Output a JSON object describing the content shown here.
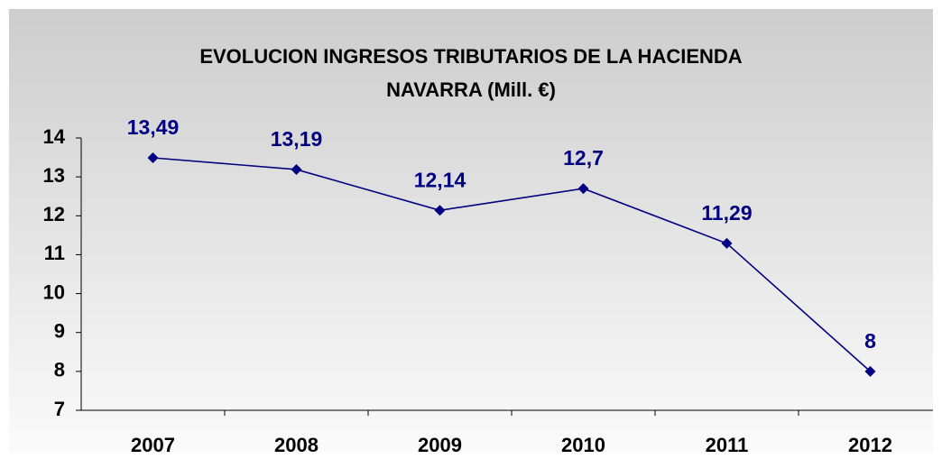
{
  "chart_data": {
    "type": "line",
    "title": "EVOLUCION INGRESOS TRIBUTARIOS DE LA HACIENDA NAVARRA (Mill. €)",
    "categories": [
      "2007",
      "2008",
      "2009",
      "2010",
      "2011",
      "2012"
    ],
    "values": [
      13.49,
      13.19,
      12.14,
      12.7,
      11.29,
      8
    ],
    "value_labels": [
      "13,49",
      "13,19",
      "12,14",
      "12,7",
      "11,29",
      "8"
    ],
    "color": "#000080",
    "ylim": [
      7,
      14
    ],
    "yticks": [
      7,
      8,
      9,
      10,
      11,
      12,
      13,
      14
    ],
    "grid": false
  }
}
